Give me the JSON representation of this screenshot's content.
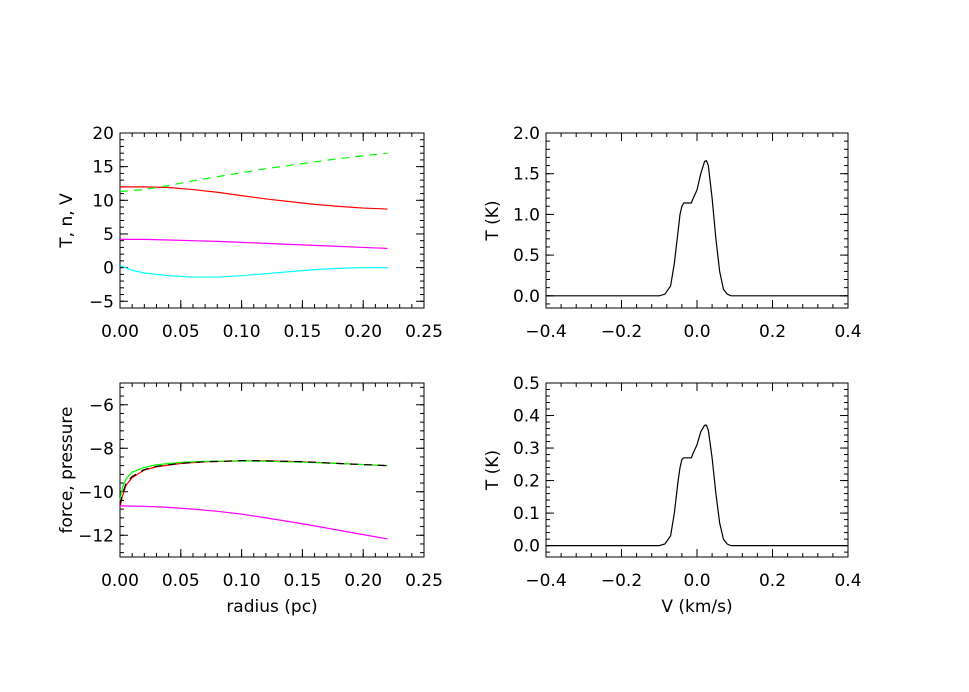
{
  "chart_data": [
    {
      "type": "line",
      "xlabel": "",
      "ylabel": "T, n, V",
      "xlim": [
        0.0,
        0.25
      ],
      "ylim": [
        -6,
        20
      ],
      "xticks": [
        0.0,
        0.05,
        0.1,
        0.15,
        0.2,
        0.25
      ],
      "xtick_labels": [
        "0.00",
        "0.05",
        "0.10",
        "0.15",
        "0.20",
        "0.25"
      ],
      "yticks": [
        -5,
        0,
        5,
        10,
        15,
        20
      ],
      "ytick_labels": [
        "−5",
        "0",
        "5",
        "10",
        "15",
        "20"
      ],
      "series": [
        {
          "color": "#ff0000",
          "dash": "",
          "x": [
            0.0,
            0.02,
            0.04,
            0.06,
            0.08,
            0.1,
            0.12,
            0.14,
            0.16,
            0.18,
            0.2,
            0.22
          ],
          "y": [
            12.0,
            12.0,
            11.9,
            11.6,
            11.2,
            10.7,
            10.2,
            9.8,
            9.4,
            9.1,
            8.85,
            8.7
          ]
        },
        {
          "color": "#00ff00",
          "dash": "8,6",
          "x": [
            0.0,
            0.02,
            0.04,
            0.06,
            0.08,
            0.1,
            0.12,
            0.14,
            0.16,
            0.18,
            0.2,
            0.22
          ],
          "y": [
            11.3,
            11.6,
            12.2,
            12.9,
            13.5,
            14.1,
            14.7,
            15.2,
            15.7,
            16.2,
            16.6,
            17.0
          ]
        },
        {
          "color": "#ff00ff",
          "dash": "",
          "x": [
            0.0,
            0.02,
            0.04,
            0.06,
            0.08,
            0.1,
            0.12,
            0.14,
            0.16,
            0.18,
            0.2,
            0.22
          ],
          "y": [
            4.2,
            4.2,
            4.1,
            4.0,
            3.9,
            3.75,
            3.6,
            3.45,
            3.3,
            3.15,
            3.0,
            2.85
          ]
        },
        {
          "color": "#00ffff",
          "dash": "",
          "x": [
            0.0,
            0.01,
            0.02,
            0.04,
            0.06,
            0.08,
            0.1,
            0.12,
            0.14,
            0.16,
            0.18,
            0.2,
            0.22
          ],
          "y": [
            0.3,
            -0.4,
            -0.8,
            -1.2,
            -1.4,
            -1.4,
            -1.2,
            -0.9,
            -0.6,
            -0.3,
            -0.1,
            0.0,
            0.0
          ]
        }
      ]
    },
    {
      "type": "line",
      "xlabel": "",
      "ylabel": "T (K)",
      "xlim": [
        -0.4,
        0.4
      ],
      "ylim": [
        -0.15,
        2.0
      ],
      "xticks": [
        -0.4,
        -0.2,
        0.0,
        0.2,
        0.4
      ],
      "xtick_labels": [
        "−0.4",
        "−0.2",
        "0.0",
        "0.2",
        "0.4"
      ],
      "yticks": [
        0.0,
        0.5,
        1.0,
        1.5,
        2.0
      ],
      "ytick_labels": [
        "0.0",
        "0.5",
        "1.0",
        "1.5",
        "2.0"
      ],
      "series": [
        {
          "color": "#000000",
          "dash": "",
          "x": [
            -0.4,
            -0.1,
            -0.085,
            -0.07,
            -0.06,
            -0.05,
            -0.045,
            -0.04,
            -0.035,
            -0.025,
            -0.015,
            -0.01,
            0.0,
            0.01,
            0.02,
            0.025,
            0.03,
            0.04,
            0.05,
            0.06,
            0.07,
            0.08,
            0.09,
            0.1,
            0.4
          ],
          "y": [
            0.0,
            0.0,
            0.02,
            0.12,
            0.4,
            0.8,
            1.0,
            1.1,
            1.14,
            1.14,
            1.14,
            1.2,
            1.3,
            1.5,
            1.65,
            1.66,
            1.6,
            1.2,
            0.7,
            0.3,
            0.08,
            0.02,
            0.0,
            0.0,
            0.0
          ]
        }
      ]
    },
    {
      "type": "line",
      "xlabel": "radius (pc)",
      "ylabel": "force, pressure",
      "xlim": [
        0.0,
        0.25
      ],
      "ylim": [
        -13.0,
        -5.0
      ],
      "xticks": [
        0.0,
        0.05,
        0.1,
        0.15,
        0.2,
        0.25
      ],
      "xtick_labels": [
        "0.00",
        "0.05",
        "0.10",
        "0.15",
        "0.20",
        "0.25"
      ],
      "yticks": [
        -12,
        -10,
        -8,
        -6
      ],
      "ytick_labels": [
        "−12",
        "−10",
        "−8",
        "−6"
      ],
      "series": [
        {
          "color": "#ff0000",
          "dash": "",
          "x": [
            0.0,
            0.002,
            0.005,
            0.01,
            0.02,
            0.03,
            0.05,
            0.07,
            0.1,
            0.12,
            0.15,
            0.18,
            0.2,
            0.22
          ],
          "y": [
            -10.7,
            -10.2,
            -9.7,
            -9.35,
            -9.0,
            -8.85,
            -8.7,
            -8.62,
            -8.58,
            -8.58,
            -8.62,
            -8.7,
            -8.75,
            -8.8
          ]
        },
        {
          "color": "#00ff00",
          "dash": "",
          "x": [
            0.0,
            0.002,
            0.005,
            0.01,
            0.02,
            0.03,
            0.05,
            0.07,
            0.1,
            0.12,
            0.15,
            0.18,
            0.2,
            0.22
          ],
          "y": [
            -10.4,
            -9.8,
            -9.4,
            -9.1,
            -8.88,
            -8.76,
            -8.65,
            -8.6,
            -8.58,
            -8.6,
            -8.64,
            -8.7,
            -8.75,
            -8.8
          ]
        },
        {
          "color": "#000000",
          "dash": "8,6",
          "x": [
            0.0,
            0.002,
            0.005,
            0.01,
            0.02,
            0.03,
            0.05,
            0.07,
            0.1,
            0.12,
            0.15,
            0.18,
            0.2,
            0.22
          ],
          "y": [
            -10.6,
            -10.1,
            -9.6,
            -9.3,
            -8.98,
            -8.83,
            -8.69,
            -8.62,
            -8.57,
            -8.58,
            -8.62,
            -8.7,
            -8.75,
            -8.8
          ]
        },
        {
          "color": "#ff00ff",
          "dash": "",
          "x": [
            0.0,
            0.02,
            0.04,
            0.06,
            0.08,
            0.1,
            0.12,
            0.14,
            0.16,
            0.18,
            0.2,
            0.22
          ],
          "y": [
            -10.65,
            -10.67,
            -10.72,
            -10.8,
            -10.9,
            -11.03,
            -11.2,
            -11.38,
            -11.57,
            -11.77,
            -11.97,
            -12.17
          ]
        }
      ]
    },
    {
      "type": "line",
      "xlabel": "V (km/s)",
      "ylabel": "T (K)",
      "xlim": [
        -0.4,
        0.4
      ],
      "ylim": [
        -0.035,
        0.5
      ],
      "xticks": [
        -0.4,
        -0.2,
        0.0,
        0.2,
        0.4
      ],
      "xtick_labels": [
        "−0.4",
        "−0.2",
        "0.0",
        "0.2",
        "0.4"
      ],
      "yticks": [
        0.0,
        0.1,
        0.2,
        0.3,
        0.4,
        0.5
      ],
      "ytick_labels": [
        "0.0",
        "0.1",
        "0.2",
        "0.3",
        "0.4",
        "0.5"
      ],
      "series": [
        {
          "color": "#000000",
          "dash": "",
          "x": [
            -0.4,
            -0.1,
            -0.085,
            -0.07,
            -0.06,
            -0.05,
            -0.045,
            -0.04,
            -0.035,
            -0.025,
            -0.015,
            -0.01,
            0.0,
            0.01,
            0.02,
            0.025,
            0.03,
            0.04,
            0.05,
            0.06,
            0.07,
            0.08,
            0.09,
            0.1,
            0.4
          ],
          "y": [
            0.0,
            0.0,
            0.005,
            0.03,
            0.1,
            0.2,
            0.24,
            0.265,
            0.27,
            0.27,
            0.27,
            0.285,
            0.31,
            0.35,
            0.37,
            0.37,
            0.355,
            0.27,
            0.16,
            0.07,
            0.02,
            0.005,
            0.0,
            0.0,
            0.0
          ]
        }
      ]
    }
  ]
}
